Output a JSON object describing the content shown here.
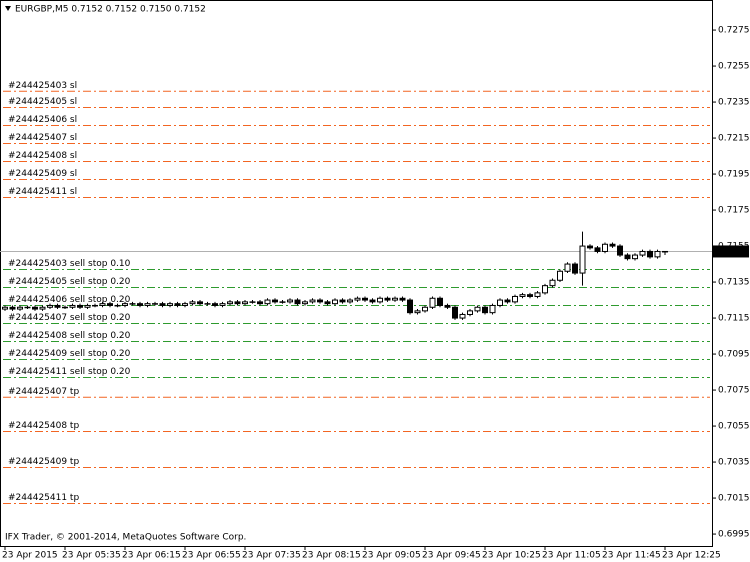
{
  "chart_data": {
    "type": "candlestick",
    "header": "EURGBP,M5  0.7152 0.7152 0.7150 0.7152",
    "footer": "IFX Trader, © 2001-2014, MetaQuotes Software Corp.",
    "ylim": [
      0.69917,
      0.72917
    ],
    "yticks": [
      0.7275,
      0.7255,
      0.7235,
      0.7215,
      0.7195,
      0.7175,
      0.7155,
      0.7135,
      0.7115,
      0.7095,
      0.7075,
      0.7055,
      0.7035,
      0.7015,
      0.6995
    ],
    "current_price": 0.7152,
    "up_color": "#ffffff",
    "down_color": "#000000",
    "categories": [
      "23 Apr 2015",
      null,
      null,
      null,
      null,
      null,
      null,
      null,
      "23 Apr 05:35",
      null,
      null,
      null,
      null,
      null,
      null,
      null,
      "23 Apr 06:15",
      null,
      null,
      null,
      null,
      null,
      null,
      null,
      "23 Apr 06:55",
      null,
      null,
      null,
      null,
      null,
      null,
      null,
      "23 Apr 07:35",
      null,
      null,
      null,
      null,
      null,
      null,
      null,
      "23 Apr 08:15",
      null,
      null,
      null,
      null,
      null,
      null,
      null,
      "23 Apr 09:05",
      null,
      null,
      null,
      null,
      null,
      null,
      null,
      "23 Apr 09:45",
      null,
      null,
      null,
      null,
      null,
      null,
      null,
      "23 Apr 10:25",
      null,
      null,
      null,
      null,
      null,
      null,
      null,
      "23 Apr 11:05",
      null,
      null,
      null,
      null,
      null,
      null,
      null,
      "23 Apr 11:45",
      null,
      null,
      null,
      null,
      null,
      null,
      null,
      "23 Apr 12:25"
    ],
    "open": [
      0.712,
      0.7121,
      0.712,
      0.7121,
      0.7121,
      0.712,
      0.7121,
      0.7122,
      0.7121,
      0.7121,
      0.7122,
      0.7121,
      0.7122,
      0.7122,
      0.7123,
      0.7122,
      0.7122,
      0.7123,
      0.7123,
      0.7122,
      0.7123,
      0.7123,
      0.7122,
      0.7123,
      0.7122,
      0.7123,
      0.7124,
      0.7123,
      0.7123,
      0.7122,
      0.7123,
      0.7124,
      0.7123,
      0.7124,
      0.7124,
      0.7123,
      0.7125,
      0.7124,
      0.7124,
      0.7125,
      0.7123,
      0.7124,
      0.7125,
      0.7124,
      0.7123,
      0.7125,
      0.7124,
      0.7125,
      0.7126,
      0.7125,
      0.7124,
      0.7126,
      0.7125,
      0.7126,
      0.7125,
      0.7118,
      0.7119,
      0.7121,
      0.7126,
      0.7122,
      0.7121,
      0.7115,
      0.7117,
      0.7119,
      0.7121,
      0.7118,
      0.7122,
      0.7125,
      0.7124,
      0.7127,
      0.7128,
      0.7127,
      0.7129,
      0.7133,
      0.7136,
      0.7141,
      0.7145,
      0.714,
      0.7155,
      0.7154,
      0.7152,
      0.7156,
      0.7155,
      0.715,
      0.7148,
      0.715,
      0.7152,
      0.7149,
      0.7152
    ],
    "high": [
      0.7122,
      0.7122,
      0.7122,
      0.7122,
      0.7122,
      0.7122,
      0.7123,
      0.7123,
      0.7122,
      0.7123,
      0.7123,
      0.7123,
      0.7123,
      0.7124,
      0.7124,
      0.7123,
      0.7124,
      0.7124,
      0.7124,
      0.7124,
      0.7124,
      0.7124,
      0.7124,
      0.7124,
      0.7124,
      0.7125,
      0.7125,
      0.7124,
      0.7124,
      0.7124,
      0.7125,
      0.7125,
      0.7125,
      0.7125,
      0.7125,
      0.7126,
      0.7126,
      0.7125,
      0.7126,
      0.7126,
      0.7125,
      0.7126,
      0.7126,
      0.7125,
      0.7126,
      0.7126,
      0.7126,
      0.7127,
      0.7127,
      0.7126,
      0.7127,
      0.7127,
      0.7127,
      0.7127,
      0.7126,
      0.712,
      0.7122,
      0.7127,
      0.7127,
      0.7123,
      0.7122,
      0.7118,
      0.712,
      0.7122,
      0.7122,
      0.7123,
      0.7126,
      0.7126,
      0.7128,
      0.7129,
      0.7129,
      0.713,
      0.7134,
      0.7137,
      0.7142,
      0.7146,
      0.7146,
      0.7163,
      0.7156,
      0.7155,
      0.7157,
      0.7157,
      0.7156,
      0.7151,
      0.7151,
      0.7153,
      0.7153,
      0.7153,
      0.7152
    ],
    "low": [
      0.7119,
      0.7119,
      0.7119,
      0.712,
      0.7119,
      0.7119,
      0.712,
      0.712,
      0.712,
      0.712,
      0.712,
      0.712,
      0.7121,
      0.7121,
      0.7121,
      0.7121,
      0.7121,
      0.7122,
      0.7121,
      0.7121,
      0.7122,
      0.7121,
      0.7121,
      0.7121,
      0.7121,
      0.7122,
      0.7122,
      0.7122,
      0.7121,
      0.7121,
      0.7122,
      0.7122,
      0.7122,
      0.7123,
      0.7122,
      0.7122,
      0.7123,
      0.7123,
      0.7123,
      0.7122,
      0.7122,
      0.7123,
      0.7123,
      0.7122,
      0.7122,
      0.7123,
      0.7123,
      0.7124,
      0.7124,
      0.7123,
      0.7123,
      0.7124,
      0.7124,
      0.7124,
      0.7117,
      0.7117,
      0.7118,
      0.712,
      0.7121,
      0.712,
      0.7114,
      0.7114,
      0.7116,
      0.7118,
      0.7117,
      0.7117,
      0.7121,
      0.7123,
      0.7123,
      0.7126,
      0.7126,
      0.7126,
      0.7128,
      0.7132,
      0.7135,
      0.714,
      0.7139,
      0.7133,
      0.7153,
      0.7151,
      0.7151,
      0.7154,
      0.7149,
      0.7147,
      0.7147,
      0.7149,
      0.7148,
      0.7148,
      0.715
    ],
    "close": [
      0.7121,
      0.712,
      0.7121,
      0.7121,
      0.712,
      0.7121,
      0.7122,
      0.7121,
      0.7121,
      0.7122,
      0.7121,
      0.7122,
      0.7122,
      0.7123,
      0.7122,
      0.7122,
      0.7123,
      0.7123,
      0.7122,
      0.7123,
      0.7123,
      0.7122,
      0.7123,
      0.7122,
      0.7123,
      0.7124,
      0.7123,
      0.7123,
      0.7122,
      0.7123,
      0.7124,
      0.7123,
      0.7124,
      0.7124,
      0.7123,
      0.7125,
      0.7124,
      0.7124,
      0.7125,
      0.7123,
      0.7124,
      0.7125,
      0.7124,
      0.7123,
      0.7125,
      0.7124,
      0.7125,
      0.7126,
      0.7125,
      0.7124,
      0.7126,
      0.7125,
      0.7126,
      0.7125,
      0.7118,
      0.7119,
      0.7121,
      0.7126,
      0.7122,
      0.7121,
      0.7115,
      0.7117,
      0.7119,
      0.7121,
      0.7118,
      0.7122,
      0.7125,
      0.7124,
      0.7127,
      0.7128,
      0.7127,
      0.7129,
      0.7133,
      0.7136,
      0.7141,
      0.7145,
      0.714,
      0.7155,
      0.7154,
      0.7152,
      0.7156,
      0.7155,
      0.715,
      0.7148,
      0.715,
      0.7152,
      0.7149,
      0.7152,
      0.7152
    ],
    "order_lines": [
      {
        "color": "#f26522",
        "lines": [
          {
            "label": "#244425403 sl",
            "price": 0.7241
          },
          {
            "label": "#244425405 sl",
            "price": 0.7232
          },
          {
            "label": "#244425406 sl",
            "price": 0.7222
          },
          {
            "label": "#244425407 sl",
            "price": 0.7212
          },
          {
            "label": "#244425408 sl",
            "price": 0.7202
          },
          {
            "label": "#244425409 sl",
            "price": 0.7192
          },
          {
            "label": "#244425411 sl",
            "price": 0.7182
          }
        ]
      },
      {
        "color": "#2e9a2e",
        "lines": [
          {
            "label": "#244425403 sell stop 0.10",
            "price": 0.7142
          },
          {
            "label": "#244425405 sell stop 0.20",
            "price": 0.7132
          },
          {
            "label": "#244425406 sell stop 0.20",
            "price": 0.7122
          },
          {
            "label": "#244425407 sell stop 0.20",
            "price": 0.7112
          },
          {
            "label": "#244425408 sell stop 0.20",
            "price": 0.7102
          },
          {
            "label": "#244425409 sell stop 0.20",
            "price": 0.7092
          },
          {
            "label": "#244425411 sell stop 0.20",
            "price": 0.7082
          }
        ]
      },
      {
        "color": "#f26522",
        "lines": [
          {
            "label": "#244425407 tp",
            "price": 0.7071
          },
          {
            "label": "#244425408 tp",
            "price": 0.7052
          },
          {
            "label": "#244425409 tp",
            "price": 0.7032
          },
          {
            "label": "#244425411 tp",
            "price": 0.7012
          }
        ]
      }
    ]
  }
}
